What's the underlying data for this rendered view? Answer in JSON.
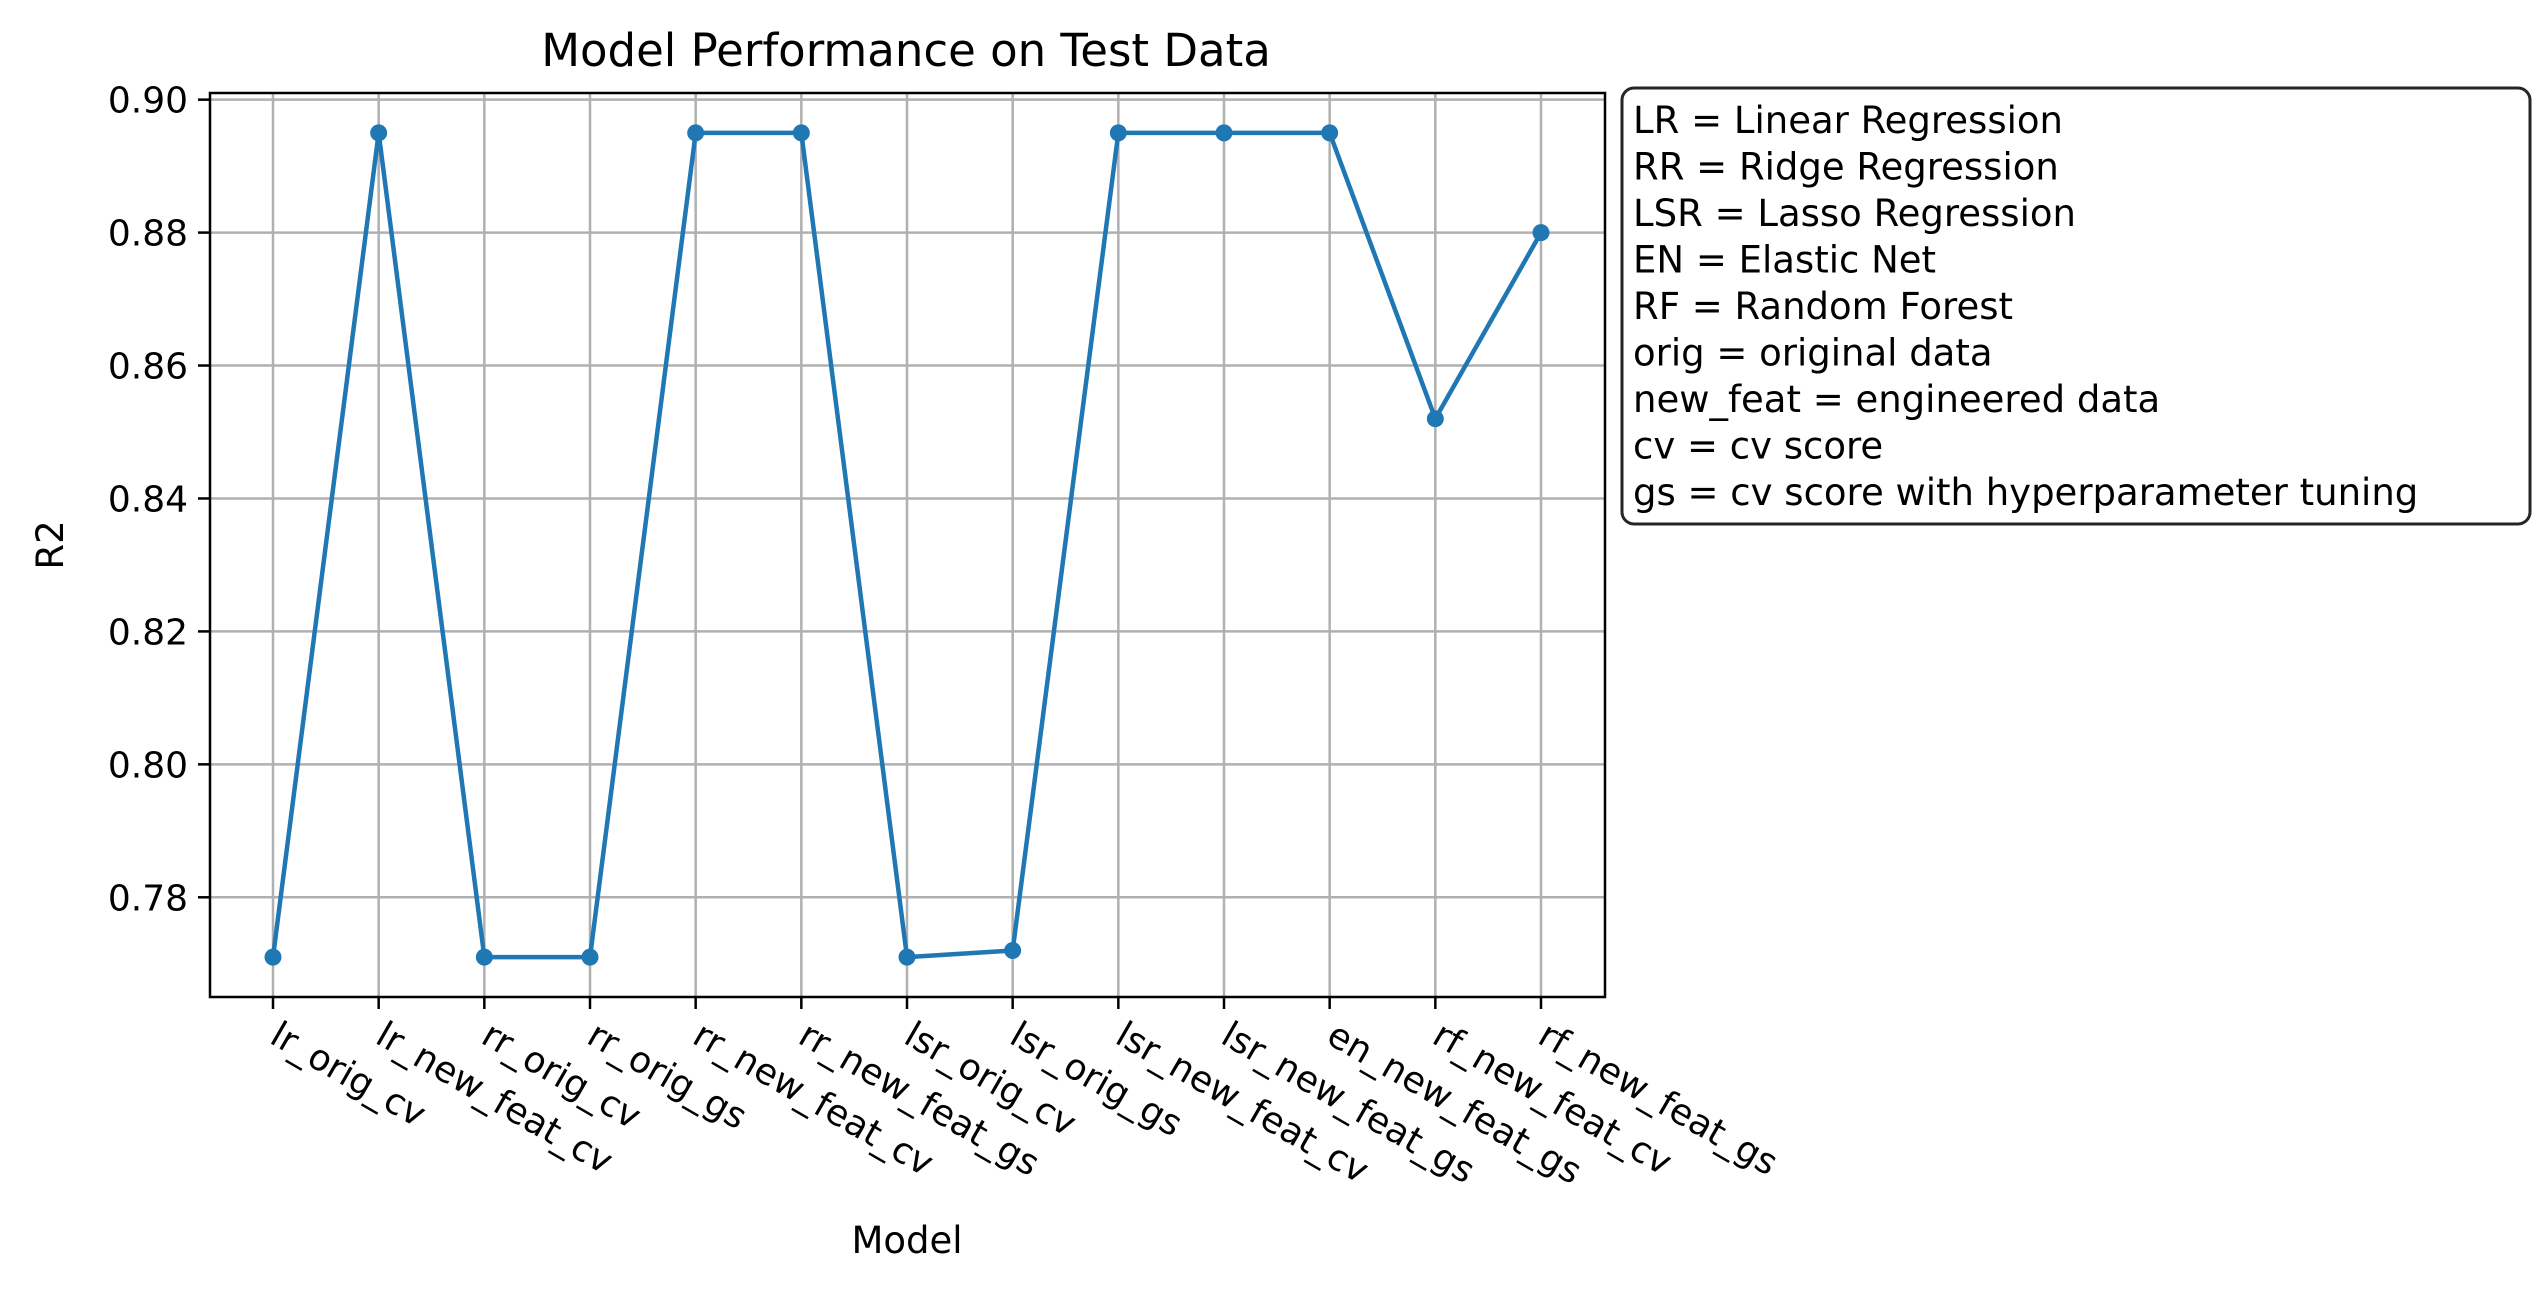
{
  "chart_data": {
    "type": "line",
    "title": "Model Performance on Test Data",
    "xlabel": "Model",
    "ylabel": "R2",
    "categories": [
      "lr_orig_cv",
      "lr_new_feat_cv",
      "rr_orig_cv",
      "rr_orig_gs",
      "rr_new_feat_cv",
      "rr_new_feat_gs",
      "lsr_orig_cv",
      "lsr_orig_gs",
      "lsr_new_feat_cv",
      "lsr_new_feat_gs",
      "en_new_feat_gs",
      "rf_new_feat_cv",
      "rf_new_feat_gs"
    ],
    "series": [
      {
        "values": [
          0.771,
          0.895,
          0.771,
          0.771,
          0.895,
          0.895,
          0.771,
          0.772,
          0.895,
          0.895,
          0.895,
          0.852,
          0.88
        ],
        "color": "#1f77b4"
      }
    ],
    "yticks": [
      "0.78",
      "0.80",
      "0.82",
      "0.84",
      "0.86",
      "0.88",
      "0.90"
    ],
    "ylim": [
      0.765,
      0.901
    ],
    "grid": true,
    "legend_placement": "outside-right-top",
    "annotation_lines": [
      "LR = Linear Regression",
      "RR = Ridge Regression",
      "LSR = Lasso Regression",
      "EN = Elastic Net",
      "RF = Random Forest",
      "orig = original data",
      "new_feat = engineered data",
      "cv = cv score",
      "gs = cv score with hyperparameter tuning"
    ]
  }
}
